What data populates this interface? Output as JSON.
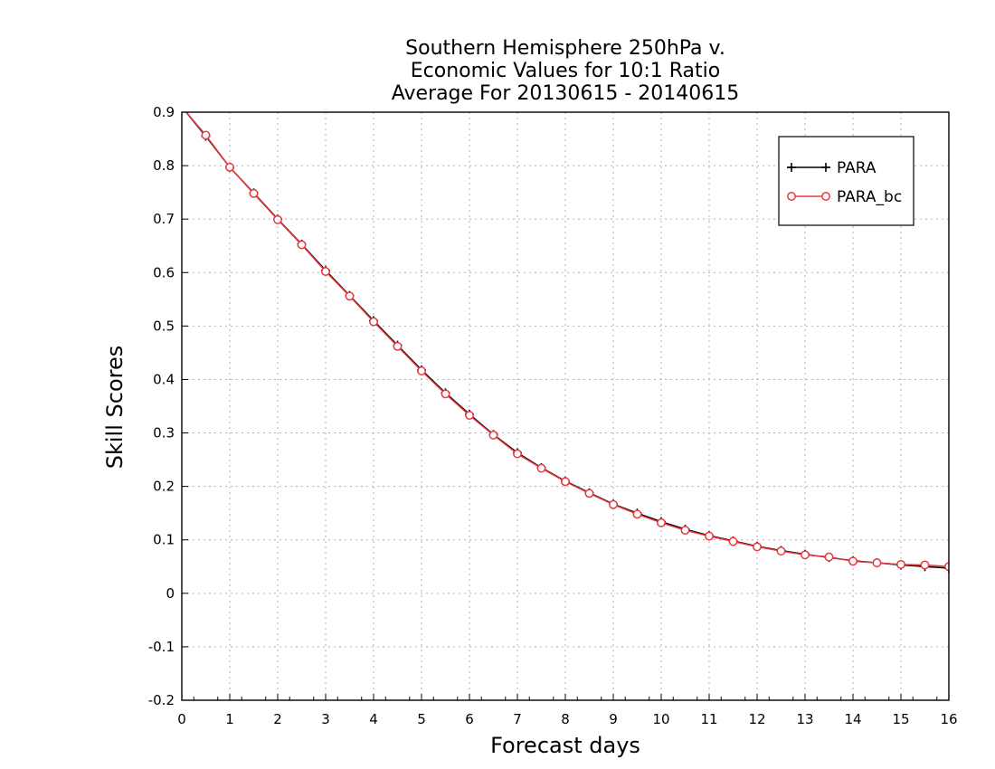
{
  "chart_data": {
    "type": "line",
    "title_lines": [
      "Southern Hemisphere 250hPa v.",
      "Economic Values for 10:1 Ratio",
      "Average For 20130615 - 20140615"
    ],
    "xlabel": "Forecast days",
    "ylabel": "Skill Scores",
    "xlim": [
      0,
      16
    ],
    "ylim": [
      -0.2,
      0.9
    ],
    "xticks": [
      "0",
      "1",
      "2",
      "3",
      "4",
      "5",
      "6",
      "7",
      "8",
      "9",
      "10",
      "11",
      "12",
      "13",
      "14",
      "15",
      "16"
    ],
    "yticks": [
      "0.9",
      "0.8",
      "0.7",
      "0.6",
      "0.5",
      "0.4",
      "0.3",
      "0.2",
      "0.1",
      "0",
      "-0.1",
      "-0.2"
    ],
    "grid": true,
    "legend_position": "top-right",
    "x": [
      0,
      0.5,
      1,
      1.5,
      2,
      2.5,
      3,
      3.5,
      4,
      4.5,
      5,
      5.5,
      6,
      6.5,
      7,
      7.5,
      8,
      8.5,
      9,
      9.5,
      10,
      10.5,
      11,
      11.5,
      12,
      12.5,
      13,
      13.5,
      14,
      14.5,
      15,
      15.5,
      16
    ],
    "series": [
      {
        "name": "PARA",
        "color": "#000000",
        "marker": "plus",
        "values": [
          0.91,
          0.855,
          0.797,
          0.749,
          0.7,
          0.653,
          0.604,
          0.557,
          0.51,
          0.464,
          0.418,
          0.375,
          0.335,
          0.297,
          0.263,
          0.235,
          0.21,
          0.188,
          0.167,
          0.15,
          0.134,
          0.12,
          0.108,
          0.098,
          0.088,
          0.08,
          0.073,
          0.067,
          0.061,
          0.057,
          0.053,
          0.05,
          0.047
        ]
      },
      {
        "name": "PARA_bc",
        "color": "#e8383d",
        "marker": "circle",
        "values": [
          0.91,
          0.857,
          0.797,
          0.748,
          0.699,
          0.652,
          0.602,
          0.556,
          0.508,
          0.462,
          0.416,
          0.373,
          0.333,
          0.296,
          0.261,
          0.234,
          0.209,
          0.187,
          0.166,
          0.148,
          0.132,
          0.118,
          0.107,
          0.097,
          0.087,
          0.079,
          0.072,
          0.068,
          0.06,
          0.057,
          0.054,
          0.053,
          0.05
        ]
      }
    ]
  }
}
